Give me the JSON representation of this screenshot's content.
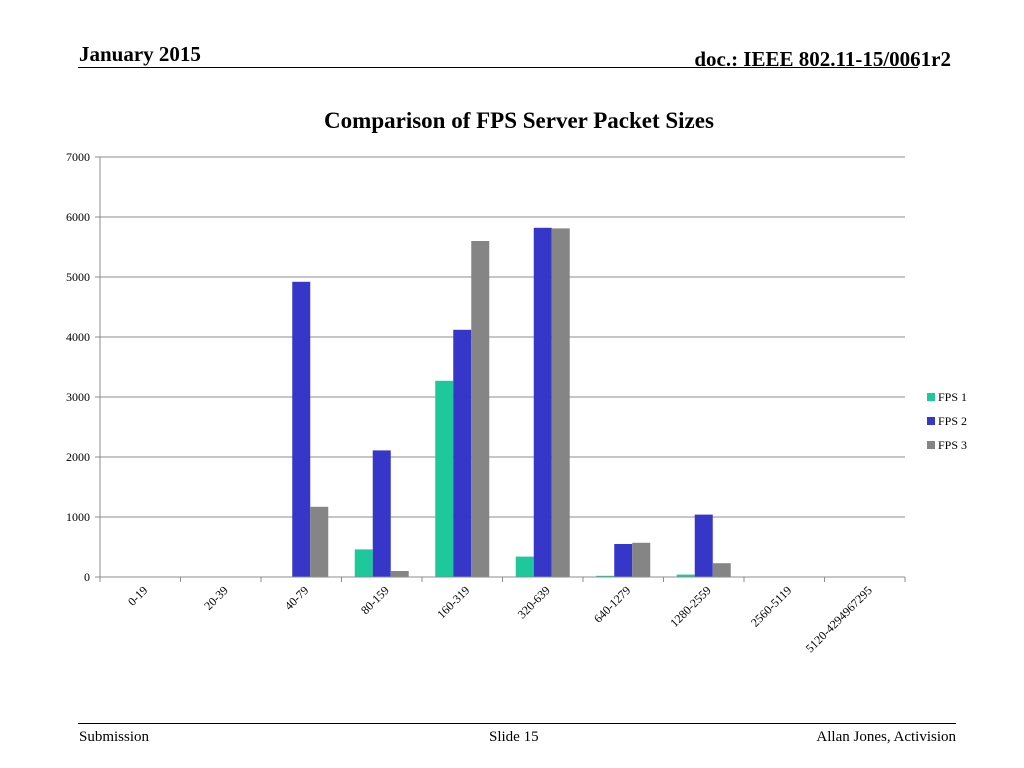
{
  "header": {
    "date": "January 2015",
    "doc": "doc.: IEEE 802.11-15/0061r2"
  },
  "footer": {
    "left": "Submission",
    "center": "Slide 15",
    "right": "Allan Jones,  Activision"
  },
  "colors": {
    "FPS 1": "#1dc99a",
    "FPS 2": "#3636c8",
    "FPS 3": "#858585",
    "grid": "#8c8c8c"
  },
  "chart_data": {
    "type": "bar",
    "title": "Comparison of FPS Server Packet Sizes",
    "xlabel": "",
    "ylabel": "",
    "ylim": [
      0,
      7000
    ],
    "yticks": [
      0,
      1000,
      2000,
      3000,
      4000,
      5000,
      6000,
      7000
    ],
    "grid": true,
    "legend": "right",
    "categories": [
      "0-19",
      "20-39",
      "40-79",
      "80-159",
      "160-319",
      "320-639",
      "640-1279",
      "1280-2559",
      "2560-5119",
      "5120-4294967295"
    ],
    "series": [
      {
        "name": "FPS 1",
        "values": [
          0,
          0,
          5,
          460,
          3270,
          340,
          20,
          40,
          0,
          0
        ]
      },
      {
        "name": "FPS 2",
        "values": [
          0,
          0,
          4920,
          2110,
          4120,
          5820,
          550,
          1040,
          0,
          0
        ]
      },
      {
        "name": "FPS 3",
        "values": [
          0,
          0,
          1170,
          100,
          5600,
          5810,
          570,
          230,
          0,
          0
        ]
      }
    ]
  }
}
